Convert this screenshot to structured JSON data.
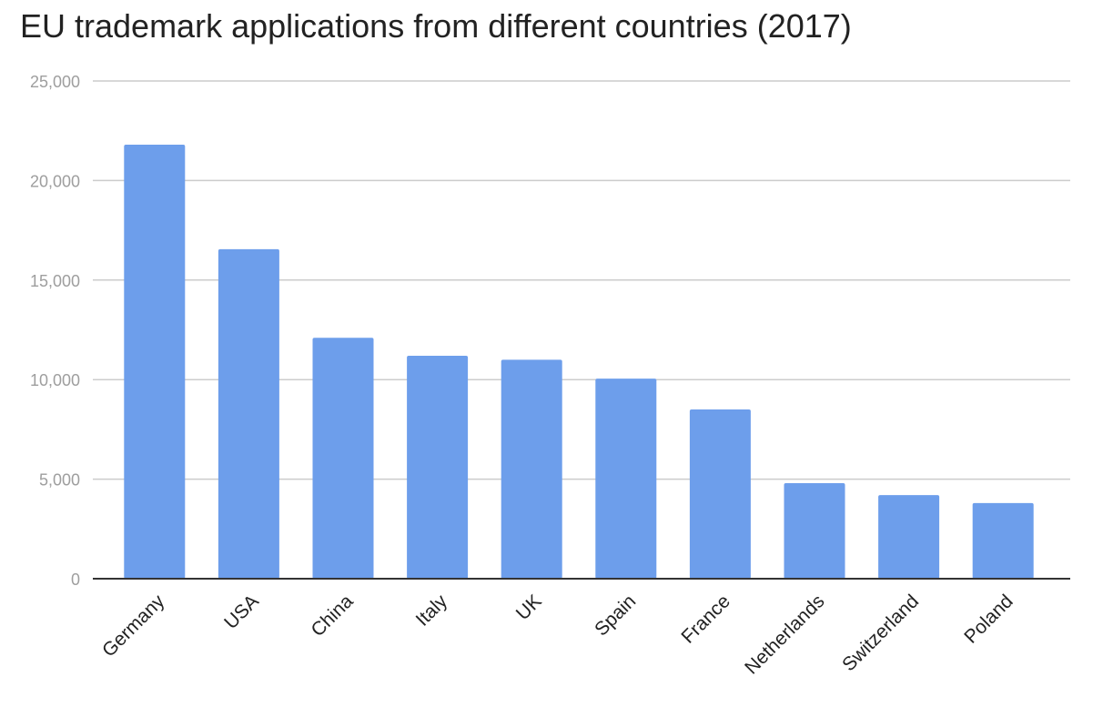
{
  "chart_data": {
    "type": "bar",
    "title": "EU trademark applications from different countries (2017)",
    "xlabel": "",
    "ylabel": "",
    "categories": [
      "Germany",
      "USA",
      "China",
      "Italy",
      "UK",
      "Spain",
      "France",
      "Netherlands",
      "Switzerland",
      "Poland"
    ],
    "values": [
      21800,
      16550,
      12100,
      11200,
      11000,
      10050,
      8500,
      4800,
      4200,
      3800
    ],
    "ylim": [
      0,
      25000
    ],
    "yticks": [
      0,
      5000,
      10000,
      15000,
      20000,
      25000
    ],
    "ytick_labels": [
      "0",
      "5,000",
      "10,000",
      "15,000",
      "20,000",
      "25,000"
    ],
    "grid": true,
    "legend": "none",
    "bar_color": "#6d9eeb",
    "grid_color": "#cccccc",
    "axis_color": "#333333"
  }
}
